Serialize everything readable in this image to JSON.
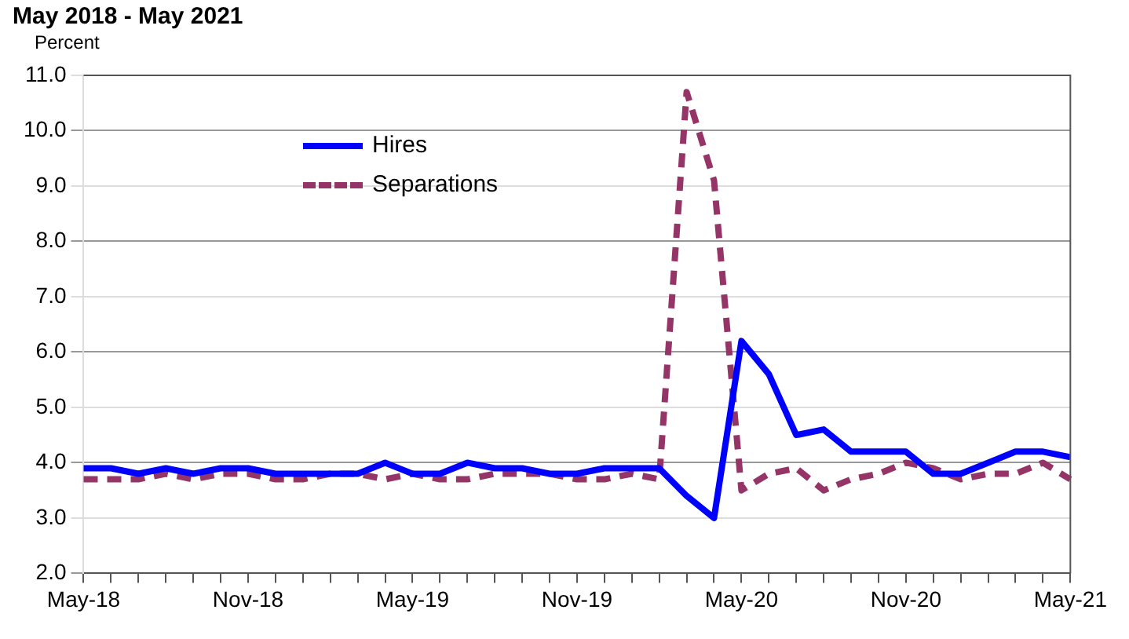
{
  "chart_data": {
    "type": "line",
    "title": "May 2018 - May 2021",
    "ylabel": "Percent",
    "categories": [
      "May-18",
      null,
      null,
      null,
      null,
      null,
      "Nov-18",
      null,
      null,
      null,
      null,
      null,
      "May-19",
      null,
      null,
      null,
      null,
      null,
      "Nov-19",
      null,
      null,
      null,
      null,
      null,
      "May-20",
      null,
      null,
      null,
      null,
      null,
      "Nov-20",
      null,
      null,
      null,
      null,
      null,
      "May-21"
    ],
    "series": [
      {
        "name": "Hires",
        "color": "#0000ff",
        "line_style": "solid",
        "values": [
          3.9,
          3.9,
          3.8,
          3.9,
          3.8,
          3.9,
          3.9,
          3.8,
          3.8,
          3.8,
          3.8,
          4.0,
          3.8,
          3.8,
          4.0,
          3.9,
          3.9,
          3.8,
          3.8,
          3.9,
          3.9,
          3.9,
          3.4,
          3.0,
          6.2,
          5.6,
          4.5,
          4.6,
          4.2,
          4.2,
          4.2,
          3.8,
          3.8,
          4.0,
          4.2,
          4.2,
          4.1
        ]
      },
      {
        "name": "Separations",
        "color": "#953567",
        "line_style": "dashed",
        "values": [
          3.7,
          3.7,
          3.7,
          3.8,
          3.7,
          3.8,
          3.8,
          3.7,
          3.7,
          3.8,
          3.8,
          3.7,
          3.8,
          3.7,
          3.7,
          3.8,
          3.8,
          3.8,
          3.7,
          3.7,
          3.8,
          3.7,
          10.7,
          9.1,
          3.5,
          3.8,
          3.9,
          3.5,
          3.7,
          3.8,
          4.0,
          3.9,
          3.7,
          3.8,
          3.8,
          4.0,
          3.7
        ]
      }
    ],
    "ylim": [
      2.0,
      11.0
    ],
    "yticks": [
      {
        "value": 2,
        "label": "2.0"
      },
      {
        "value": 3,
        "label": "3.0"
      },
      {
        "value": 4,
        "label": "4.0"
      },
      {
        "value": 5,
        "label": "5.0"
      },
      {
        "value": 6,
        "label": "6.0"
      },
      {
        "value": 7,
        "label": "7.0"
      },
      {
        "value": 8,
        "label": "8.0"
      },
      {
        "value": 9,
        "label": "9.0"
      },
      {
        "value": 10,
        "label": "10.0"
      },
      {
        "value": 11,
        "label": "11.0"
      }
    ],
    "grid": "y",
    "legend": "top left",
    "marker": "none"
  }
}
